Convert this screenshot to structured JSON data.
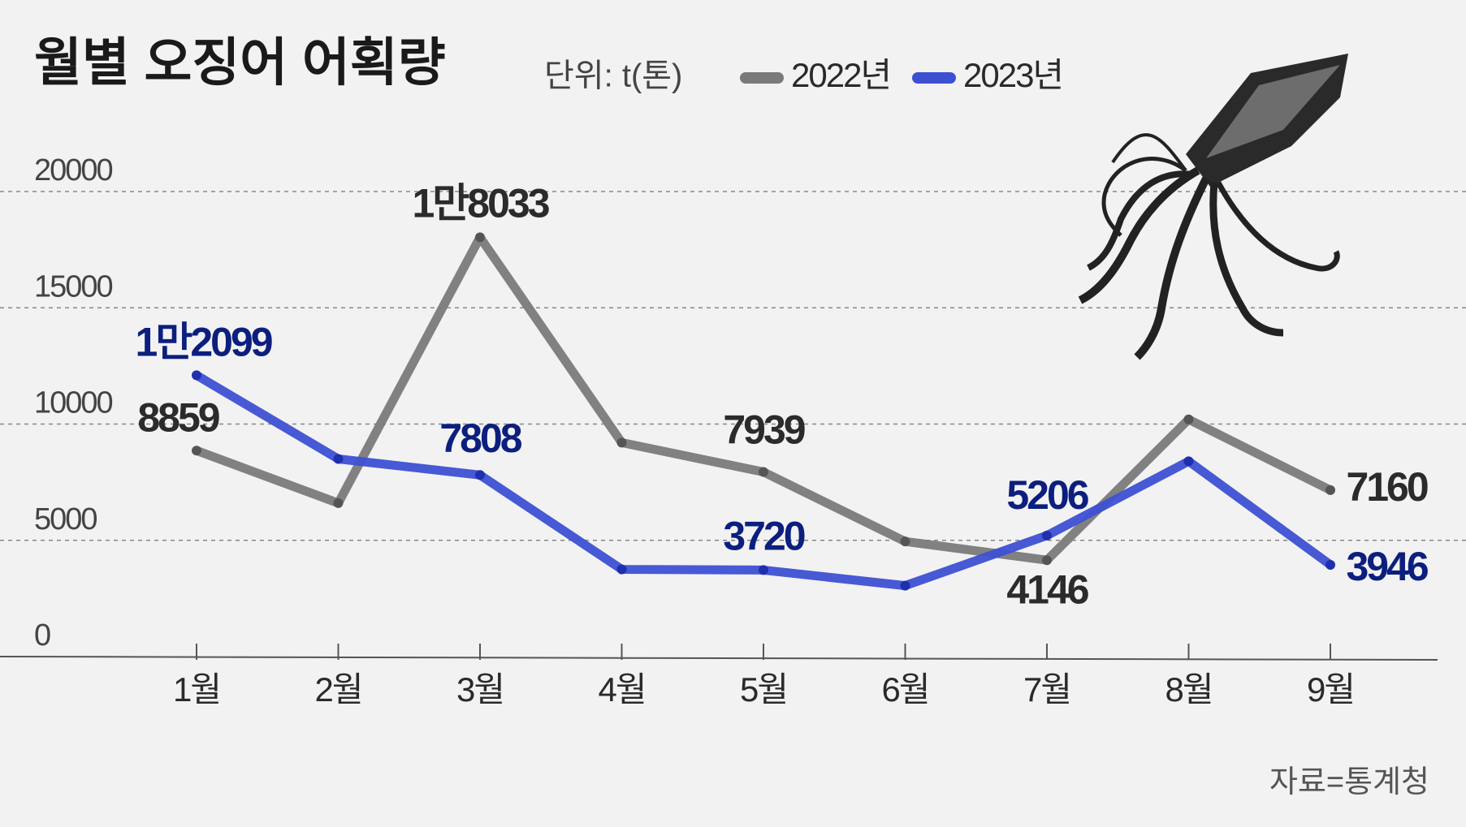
{
  "chart_data": {
    "type": "line",
    "title": "월별 오징어 어획량",
    "subtitle": "단위: t(톤)",
    "source": "자료=통계청",
    "categories": [
      "1월",
      "2월",
      "3월",
      "4월",
      "5월",
      "6월",
      "7월",
      "8월",
      "9월"
    ],
    "series": [
      {
        "name": "2022년",
        "color": "#7a7a7a",
        "values": [
          8859,
          6600,
          18033,
          9200,
          7939,
          4950,
          4146,
          10200,
          7160
        ],
        "value_labels": [
          "8859",
          null,
          "1만8033",
          null,
          "7939",
          null,
          "4146",
          null,
          "7160"
        ],
        "label_color": "#2b2b2b"
      },
      {
        "name": "2023년",
        "color": "#3d50d2",
        "values": [
          12099,
          8500,
          7808,
          3750,
          3720,
          3050,
          5206,
          8400,
          3946
        ],
        "value_labels": [
          "1만2099",
          null,
          "7808",
          null,
          "3720",
          null,
          "5206",
          null,
          "3946"
        ],
        "label_color": "#0c1f7e"
      }
    ],
    "ylim": [
      0,
      20000
    ],
    "yticks": [
      0,
      5000,
      10000,
      15000,
      20000
    ],
    "grid": true
  }
}
